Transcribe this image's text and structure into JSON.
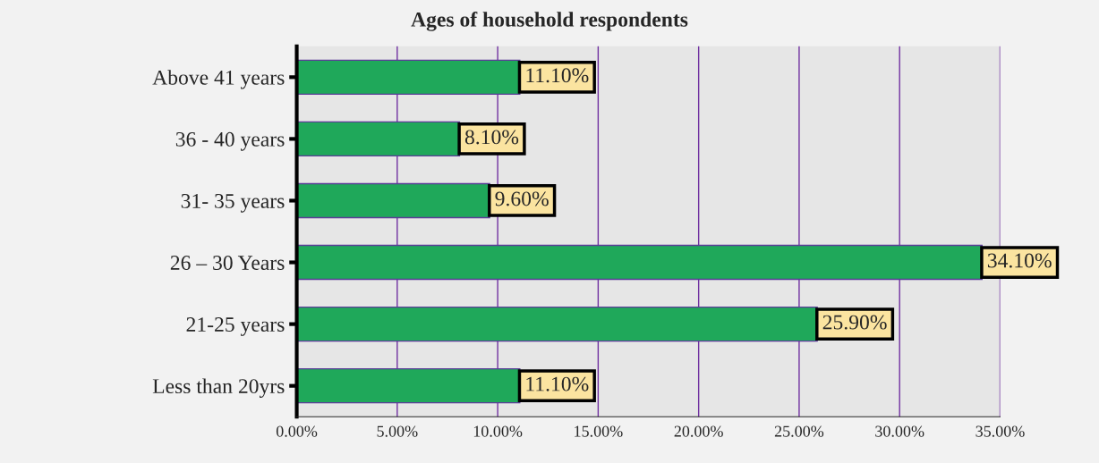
{
  "chart_data": {
    "type": "bar",
    "orientation": "horizontal",
    "title": "Ages of household respondents",
    "categories": [
      "Above 41 years",
      "36 - 40 years",
      "31- 35 years",
      "26 – 30 Years",
      "21-25 years",
      "Less than 20yrs"
    ],
    "values": [
      11.1,
      8.1,
      9.6,
      34.1,
      25.9,
      11.1
    ],
    "value_labels": [
      "11.10%",
      "8.10%",
      "9.60%",
      "34.10%",
      "25.90%",
      "11.10%"
    ],
    "color": "#1fa85a",
    "xlim": [
      0,
      35
    ],
    "xticks": [
      {
        "value": 0,
        "label": "0.00%"
      },
      {
        "value": 5,
        "label": "5.00%"
      },
      {
        "value": 10,
        "label": "10.00%"
      },
      {
        "value": 15,
        "label": "15.00%"
      },
      {
        "value": 20,
        "label": "20.00%"
      },
      {
        "value": 25,
        "label": "25.00%"
      },
      {
        "value": 30,
        "label": "30.00%"
      },
      {
        "value": 35,
        "label": "35.00%"
      }
    ],
    "grid": "x",
    "legend": false
  }
}
